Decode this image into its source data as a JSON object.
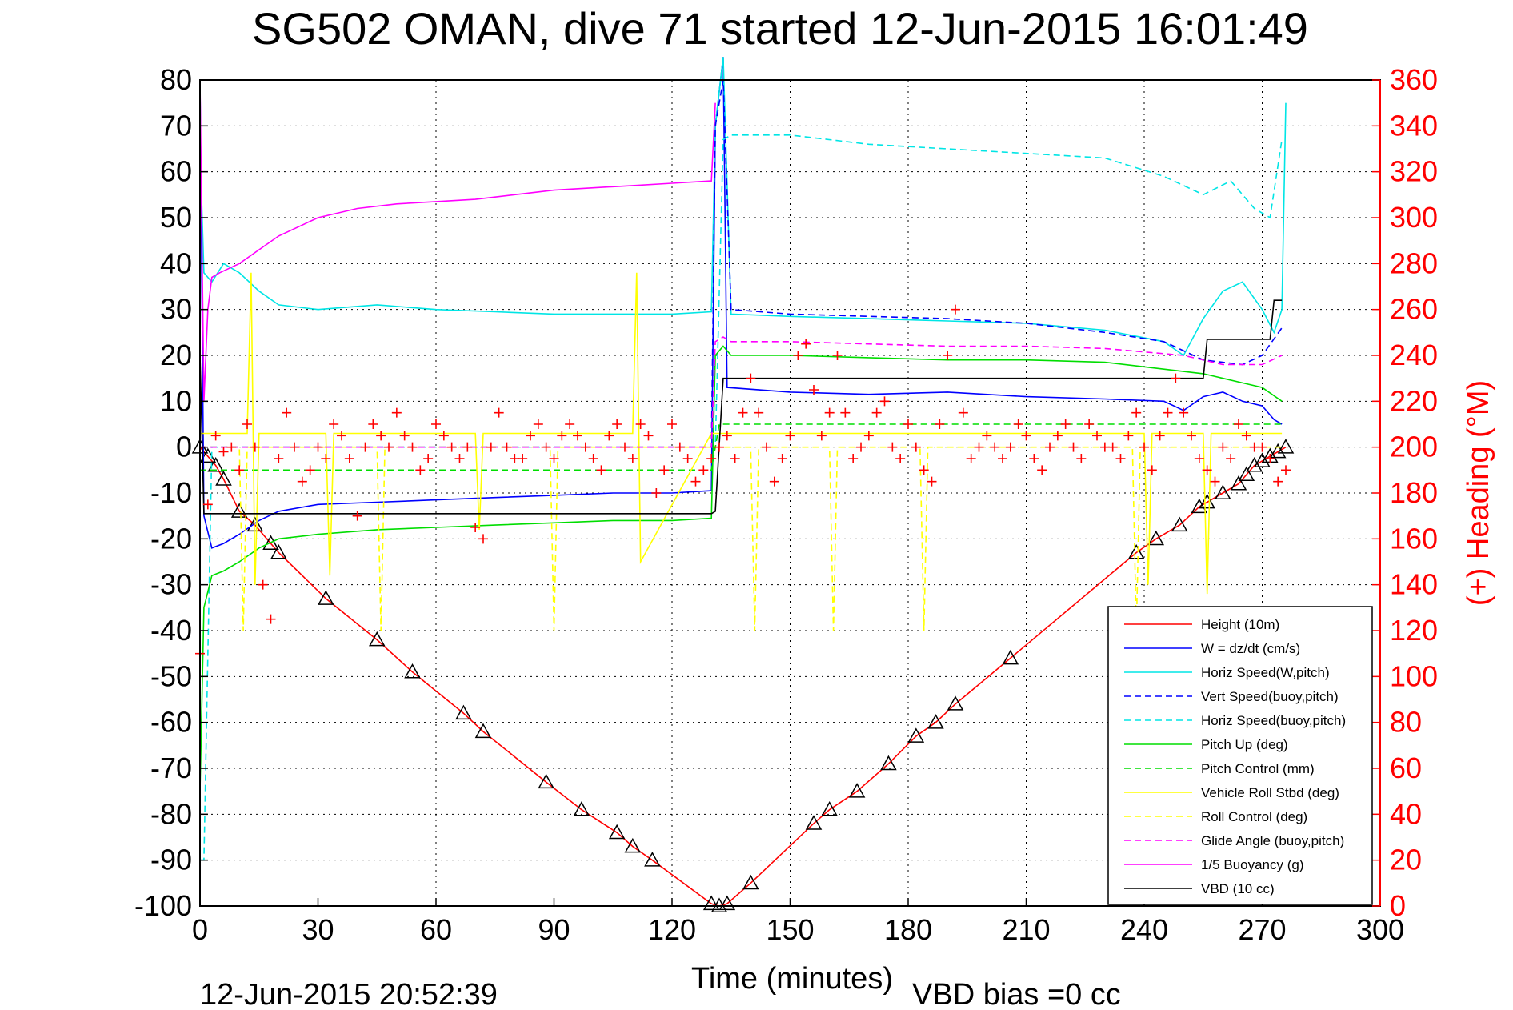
{
  "chart_data": {
    "type": "line",
    "title": "SG502 OMAN, dive 71 started 12-Jun-2015 16:01:49",
    "xlabel": "Time (minutes)",
    "ylabel_right": "(+) Heading (°M)",
    "xlim": [
      0,
      300
    ],
    "ylim": [
      -100,
      80
    ],
    "ylim_right": [
      0,
      360
    ],
    "x_ticks": [
      "0",
      "30",
      "60",
      "90",
      "120",
      "150",
      "180",
      "210",
      "240",
      "270",
      "300"
    ],
    "y_ticks": [
      "80",
      "70",
      "60",
      "50",
      "40",
      "30",
      "20",
      "10",
      "0",
      "-10",
      "-20",
      "-30",
      "-40",
      "-50",
      "-60",
      "-70",
      "-80",
      "-90",
      "-100"
    ],
    "y_ticks_right": [
      "360",
      "340",
      "320",
      "300",
      "280",
      "260",
      "240",
      "220",
      "200",
      "180",
      "160",
      "140",
      "120",
      "100",
      "80",
      "60",
      "40",
      "20",
      "0"
    ],
    "grid": true,
    "legend_position": "bottom-right",
    "footer_left": "12-Jun-2015 20:52:39",
    "footer_right": "VBD bias =0 cc",
    "series": [
      {
        "name": "Height (10m)",
        "color": "#ff0000",
        "style": "solid",
        "marker": "triangle",
        "x": [
          0,
          2,
          4,
          6,
          10,
          14,
          18,
          20,
          32,
          45,
          54,
          67,
          72,
          88,
          97,
          106,
          110,
          115,
          130,
          132,
          134,
          140,
          156,
          160,
          167,
          175,
          182,
          187,
          192,
          206,
          238,
          243,
          249,
          254,
          256,
          260,
          264,
          266,
          268,
          270,
          272,
          274,
          276
        ],
        "y": [
          0,
          -2,
          -4,
          -7,
          -14,
          -17,
          -21,
          -23,
          -33,
          -42,
          -49,
          -58,
          -62,
          -73,
          -79,
          -84,
          -87,
          -90,
          -99.5,
          -100,
          -99.5,
          -95,
          -82,
          -79,
          -75,
          -69,
          -63,
          -60,
          -56,
          -46,
          -23,
          -20,
          -17,
          -13,
          -12,
          -10,
          -8,
          -6,
          -4,
          -3,
          -2,
          -1,
          0
        ]
      },
      {
        "name": "W = dz/dt (cm/s)",
        "color": "#0000ff",
        "style": "solid",
        "x": [
          0,
          1,
          3,
          6,
          10,
          15,
          20,
          30,
          45,
          60,
          75,
          90,
          105,
          120,
          130,
          131,
          133,
          134,
          150,
          170,
          190,
          210,
          230,
          245,
          250,
          255,
          260,
          265,
          270,
          273,
          275
        ],
        "y": [
          80,
          -15,
          -22,
          -21,
          -19,
          -16,
          -14,
          -12.5,
          -12,
          -11.5,
          -11,
          -10.5,
          -10,
          -10,
          -9.5,
          70,
          85,
          13,
          12,
          11.5,
          12,
          11,
          10.5,
          10,
          8,
          11,
          12,
          10,
          9,
          6,
          5
        ]
      },
      {
        "name": "Horiz Speed(W,pitch)",
        "color": "#00e5e5",
        "style": "solid",
        "x": [
          0,
          1,
          3,
          6,
          10,
          15,
          20,
          30,
          45,
          60,
          75,
          90,
          105,
          120,
          130,
          131,
          133,
          135,
          150,
          170,
          190,
          210,
          230,
          245,
          250,
          255,
          260,
          265,
          270,
          273,
          275,
          276
        ],
        "y": [
          65,
          38,
          36,
          40,
          38,
          34,
          31,
          30,
          31,
          30,
          29.5,
          29,
          29,
          29,
          29.5,
          70,
          85,
          29,
          28.5,
          28,
          27.5,
          27,
          25.5,
          23,
          20,
          28,
          34,
          36,
          30,
          25,
          30,
          75
        ]
      },
      {
        "name": "Vert Speed(buoy,pitch)",
        "color": "#0000ff",
        "style": "dashed",
        "x": [
          0,
          130,
          131,
          133,
          135,
          150,
          170,
          190,
          210,
          230,
          245,
          255,
          265,
          270,
          275
        ],
        "y": [
          0,
          0,
          70,
          80,
          30,
          29,
          28.5,
          28,
          27,
          25,
          23,
          19,
          18,
          20,
          26
        ]
      },
      {
        "name": "Horiz Speed(buoy,pitch)",
        "color": "#00e5e5",
        "style": "dashed",
        "x": [
          0,
          1,
          3,
          130,
          131,
          133,
          135,
          150,
          170,
          190,
          210,
          230,
          245,
          255,
          262,
          268,
          272,
          275
        ],
        "y": [
          -90,
          -90,
          0,
          0,
          0,
          67,
          68,
          68,
          66,
          65,
          64,
          63,
          59,
          55,
          58,
          52,
          50,
          67
        ]
      },
      {
        "name": "Pitch Up (deg)",
        "color": "#00dd00",
        "style": "solid",
        "x": [
          0,
          1,
          3,
          6,
          10,
          15,
          20,
          30,
          45,
          60,
          75,
          90,
          105,
          120,
          130,
          131,
          133,
          135,
          150,
          170,
          190,
          210,
          230,
          245,
          255,
          265,
          270,
          275
        ],
        "y": [
          -75,
          -35,
          -28,
          -27,
          -25,
          -22,
          -20,
          -19,
          -18,
          -17.5,
          -17,
          -16.5,
          -16,
          -16,
          -15.5,
          20,
          22,
          20,
          20,
          19.5,
          19,
          19,
          18.5,
          17,
          16,
          14,
          13,
          10
        ]
      },
      {
        "name": "Pitch Control (mm)",
        "color": "#00dd00",
        "style": "dashed",
        "x": [
          0,
          5,
          130,
          132,
          134,
          275
        ],
        "y": [
          -5,
          -5,
          -5,
          5,
          5,
          5
        ]
      },
      {
        "name": "Vehicle Roll Stbd (deg)",
        "color": "#ffff00",
        "style": "solid",
        "x": [
          0,
          12,
          13,
          14,
          15,
          32,
          33,
          34,
          70,
          71,
          72,
          110,
          111,
          112,
          130,
          135,
          150,
          170,
          190,
          210,
          230,
          240,
          241,
          242,
          255,
          256,
          257,
          275
        ],
        "y": [
          3,
          3,
          38,
          -30,
          3,
          3,
          -28,
          3,
          3,
          -18,
          3,
          3,
          38,
          -25,
          3,
          3,
          3,
          3,
          3,
          3,
          3,
          3,
          -30,
          3,
          3,
          -32,
          3,
          3
        ]
      },
      {
        "name": "Roll Control (deg)",
        "color": "#ffff00",
        "style": "dashed",
        "x": [
          0,
          10,
          11,
          12,
          45,
          46,
          47,
          89,
          90,
          91,
          130,
          140,
          141,
          142,
          160,
          161,
          162,
          183,
          184,
          185,
          237,
          238,
          239,
          275
        ],
        "y": [
          0,
          0,
          -40,
          0,
          0,
          -40,
          0,
          0,
          -40,
          0,
          0,
          0,
          -40,
          0,
          0,
          -40,
          0,
          0,
          -40,
          0,
          0,
          -40,
          0,
          0
        ]
      },
      {
        "name": "Glide Angle (buoy,pitch)",
        "color": "#ff00ff",
        "style": "dashed",
        "x": [
          0,
          130,
          131,
          133,
          135,
          150,
          170,
          190,
          210,
          230,
          250,
          260,
          270,
          275
        ],
        "y": [
          0,
          0,
          23,
          24,
          23,
          23,
          22.5,
          22,
          22,
          21.5,
          20,
          18,
          18,
          20
        ]
      },
      {
        "name": "1/5 Buoyancy (g)",
        "color": "#ff00ff",
        "style": "solid",
        "x": [
          0,
          1,
          2,
          3,
          5,
          10,
          20,
          30,
          40,
          50,
          60,
          70,
          80,
          90,
          100,
          110,
          120,
          130,
          131
        ],
        "y": [
          80,
          10,
          30,
          37,
          38,
          40,
          46,
          50,
          52,
          53,
          53.5,
          54,
          55,
          56,
          56.5,
          57,
          57.5,
          58,
          75
        ]
      },
      {
        "name": "VBD (10 cc)",
        "color": "#000000",
        "style": "solid",
        "x": [
          0,
          1,
          2,
          130,
          131,
          133,
          255,
          256,
          272,
          273,
          275
        ],
        "y": [
          20,
          -14.5,
          -14.5,
          -14.5,
          -14,
          15,
          15,
          23.5,
          23.5,
          32,
          32
        ]
      },
      {
        "name": "Heading",
        "color": "#ff0000",
        "style": "markers",
        "marker": "plus",
        "axis": "right",
        "x": [
          0,
          2,
          4,
          6,
          8,
          10,
          12,
          14,
          16,
          18,
          20,
          22,
          24,
          26,
          28,
          30,
          32,
          34,
          36,
          38,
          40,
          42,
          44,
          46,
          48,
          50,
          52,
          54,
          56,
          58,
          60,
          62,
          64,
          66,
          68,
          70,
          72,
          74,
          76,
          78,
          80,
          82,
          84,
          86,
          88,
          90,
          92,
          94,
          96,
          98,
          100,
          102,
          104,
          106,
          108,
          110,
          112,
          114,
          116,
          118,
          120,
          122,
          124,
          126,
          128,
          130,
          132,
          134,
          136,
          138,
          140,
          142,
          144,
          146,
          148,
          150,
          152,
          154,
          156,
          158,
          160,
          162,
          164,
          166,
          168,
          170,
          172,
          174,
          176,
          178,
          180,
          182,
          184,
          186,
          188,
          190,
          192,
          194,
          196,
          198,
          200,
          202,
          204,
          206,
          208,
          210,
          212,
          214,
          216,
          218,
          220,
          222,
          224,
          226,
          228,
          230,
          232,
          234,
          236,
          238,
          240,
          242,
          244,
          246,
          248,
          250,
          252,
          254,
          256,
          258,
          260,
          262,
          264,
          266,
          268,
          270,
          272,
          274,
          276
        ],
        "y": [
          110,
          175,
          205,
          198,
          200,
          190,
          210,
          200,
          140,
          125,
          195,
          215,
          200,
          185,
          190,
          200,
          195,
          210,
          205,
          195,
          170,
          200,
          210,
          205,
          200,
          215,
          205,
          200,
          190,
          195,
          210,
          205,
          200,
          195,
          200,
          165,
          160,
          200,
          215,
          200,
          195,
          195,
          205,
          210,
          200,
          195,
          205,
          210,
          205,
          200,
          195,
          190,
          205,
          210,
          200,
          195,
          210,
          205,
          180,
          190,
          210,
          200,
          195,
          185,
          190,
          195,
          200,
          205,
          195,
          215,
          230,
          215,
          200,
          185,
          195,
          205,
          240,
          245,
          225,
          205,
          215,
          240,
          215,
          195,
          200,
          205,
          215,
          220,
          200,
          195,
          210,
          200,
          190,
          185,
          210,
          240,
          260,
          215,
          195,
          200,
          205,
          200,
          195,
          200,
          210,
          205,
          195,
          190,
          200,
          205,
          210,
          200,
          195,
          210,
          205,
          200,
          200,
          195,
          205,
          215,
          200,
          190,
          205,
          215,
          230,
          215,
          205,
          195,
          190,
          185,
          200,
          195,
          210,
          205,
          200,
          200,
          195,
          185,
          190
        ]
      }
    ]
  }
}
